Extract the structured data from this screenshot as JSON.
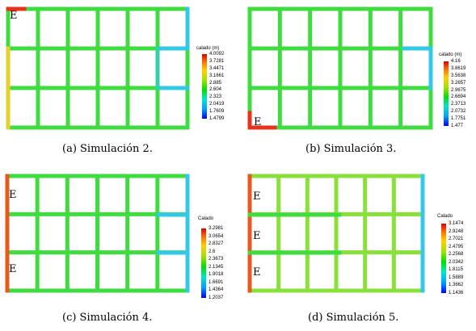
{
  "panels": [
    {
      "caption": "(a) Simulación 2.",
      "legend_title": "calado (m)",
      "legend_ticks": [
        "4.0092",
        "3.7281",
        "3.4471",
        "3.1661",
        "2.885",
        "2.604",
        "2.323",
        "2.0419",
        "1.7609",
        "1.4799"
      ],
      "markers": [
        "E"
      ]
    },
    {
      "caption": "(b) Simulación 3.",
      "legend_title": "calado (m)",
      "legend_ticks": [
        "4.16",
        "3.8619",
        "3.5638",
        "3.2657",
        "2.9675",
        "2.6694",
        "2.3713",
        "2.0732",
        "1.7751",
        "1.477"
      ],
      "markers": [
        "E"
      ]
    },
    {
      "caption": "(c) Simulación 4.",
      "legend_title": "Calado",
      "legend_ticks": [
        "3.2981",
        "3.0654",
        "2.8327",
        "2.6",
        "2.3673",
        "2.1345",
        "1.9018",
        "1.6691",
        "1.4364",
        "1.2037"
      ],
      "markers": [
        "E",
        "E"
      ]
    },
    {
      "caption": "(d) Simulación 5.",
      "legend_title": "Calado",
      "legend_ticks": [
        "3.1474",
        "2.9248",
        "2.7021",
        "2.4795",
        "2.2568",
        "2.0342",
        "1.8115",
        "1.5889",
        "1.3662",
        "1.1436"
      ],
      "markers": [
        "E",
        "E",
        "E"
      ]
    }
  ],
  "colors": {
    "street_main": "#3fdc3f",
    "street_light": "#8ae03a",
    "inlet_red": "#e8331c",
    "edge_yellow": "#e6d22a",
    "edge_cyan": "#33c8e6"
  }
}
